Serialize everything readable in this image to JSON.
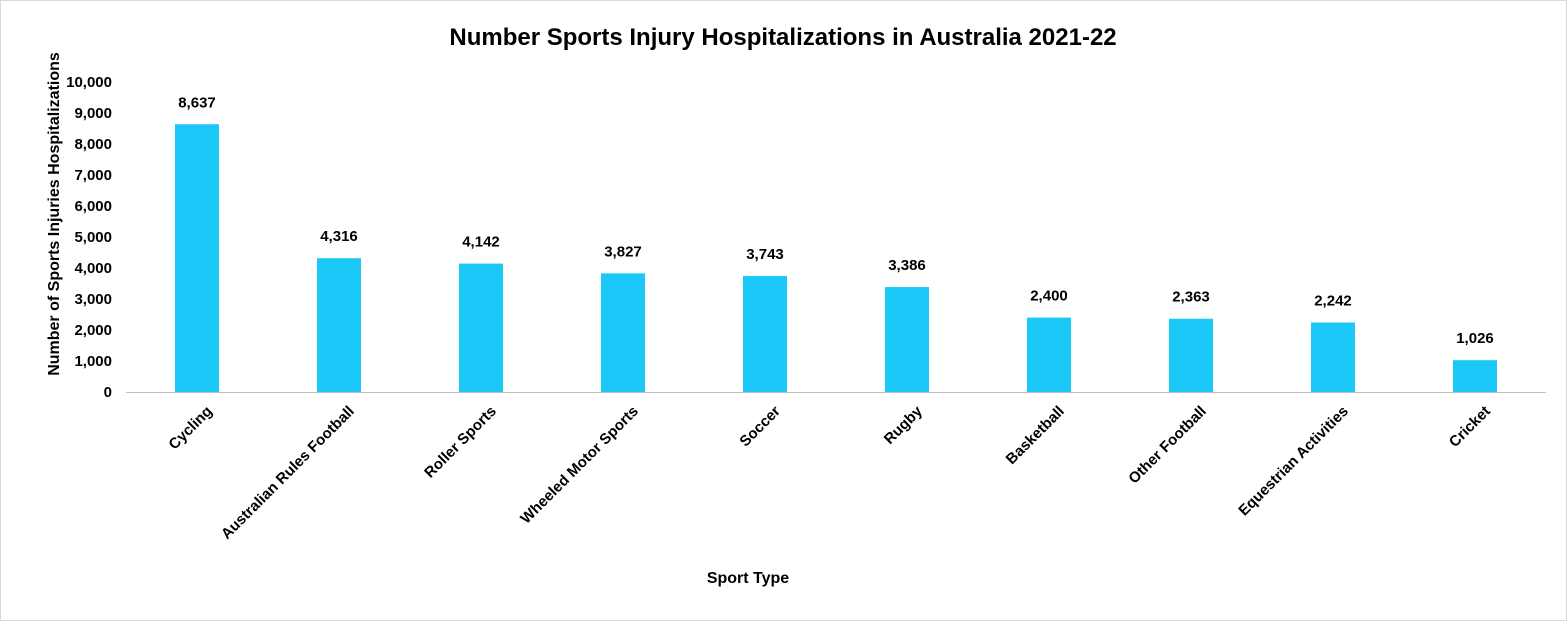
{
  "chart_data": {
    "type": "bar",
    "title": "Number Sports Injury Hospitalizations in Australia 2021-22",
    "xlabel": "Sport Type",
    "ylabel": "Number of Sports Injuries Hospitalizations",
    "categories": [
      "Cycling",
      "Australian Rules Football",
      "Roller Sports",
      "Wheeled Motor Sports",
      "Soccer",
      "Rugby",
      "Basketball",
      "Other Football",
      "Equestrian Activities",
      "Cricket"
    ],
    "values": [
      8637,
      4316,
      4142,
      3827,
      3743,
      3386,
      2400,
      2363,
      2242,
      1026
    ],
    "data_labels": [
      "8,637",
      "4,316",
      "4,142",
      "3,827",
      "3,743",
      "3,386",
      "2,400",
      "2,363",
      "2,242",
      "1,026"
    ],
    "yticks": [
      "0",
      "1,000",
      "2,000",
      "3,000",
      "4,000",
      "5,000",
      "6,000",
      "7,000",
      "8,000",
      "9,000",
      "10,000"
    ],
    "ylim": [
      0,
      10000
    ],
    "grid": false,
    "legend": "none",
    "bar_color": "#1cc8f7"
  }
}
